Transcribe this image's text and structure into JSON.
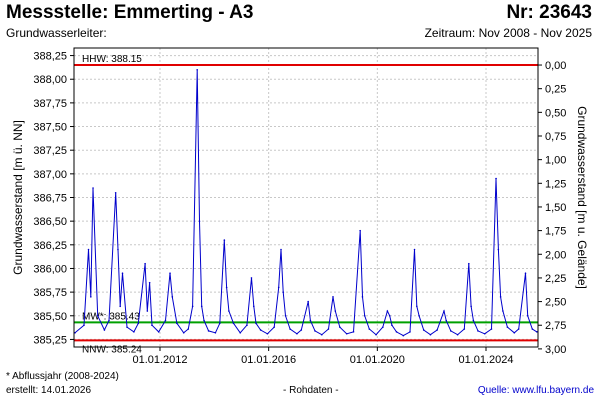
{
  "header": {
    "title": "Messstelle: Emmerting - A3",
    "station_number": "Nr: 23643",
    "subtitle": "Grundwasserleiter:",
    "period": "Zeitraum: Nov 2008 - Nov 2025"
  },
  "footer": {
    "footnote": "* Abflussjahr (2008-2024)",
    "created": "erstellt:  14.01.2026",
    "data_type": "- Rohdaten -",
    "source": "Quelle: www.lfu.bayern.de"
  },
  "colors": {
    "series": "#0000cc",
    "hhw_line": "#e00000",
    "nnw_line": "#e00000",
    "mw_line": "#00a000",
    "grid": "#c8c8c8"
  },
  "chart_data": {
    "type": "line",
    "ylabel": "Grundwasserstand [m ü. NN]",
    "ylabel_right": "Grundwasserstand [m u. Gelände]",
    "xlim": [
      "2008-11-01",
      "2025-11-30"
    ],
    "ylim": [
      385.17,
      388.33
    ],
    "y_ticks": [
      "385,25",
      "385,50",
      "385,75",
      "386,00",
      "386,25",
      "386,50",
      "386,75",
      "387,00",
      "387,25",
      "387,50",
      "387,75",
      "388,00",
      "388,25"
    ],
    "y_tick_values": [
      385.25,
      385.5,
      385.75,
      386.0,
      386.25,
      386.5,
      386.75,
      387.0,
      387.25,
      387.5,
      387.75,
      388.0,
      388.25
    ],
    "y2_ticks": [
      "0,00",
      "0,25",
      "0,50",
      "0,75",
      "1,00",
      "1,25",
      "1,50",
      "1,75",
      "2,00",
      "2,25",
      "2,50",
      "2,75",
      "3,00"
    ],
    "y2_tick_values": [
      0,
      0.25,
      0.5,
      0.75,
      1.0,
      1.25,
      1.5,
      1.75,
      2.0,
      2.25,
      2.5,
      2.75,
      3.0
    ],
    "ground_level": 388.15,
    "x_ticks": [
      "01.01.2012",
      "01.01.2016",
      "01.01.2020",
      "01.01.2024"
    ],
    "x_tick_dates": [
      "2012-01-01",
      "2016-01-01",
      "2020-01-01",
      "2024-01-01"
    ],
    "grid": true,
    "reference_lines": [
      {
        "label": "HHW: 388.15",
        "value": 388.15
      },
      {
        "label": "MW*: 385.43",
        "value": 385.43
      },
      {
        "label": "NNW: 385.24",
        "value": 385.24
      }
    ],
    "series": [
      {
        "x": [
          "2008-11",
          "2009-03",
          "2009-05",
          "2009-06",
          "2009-07",
          "2009-09",
          "2009-12",
          "2010-02",
          "2010-05",
          "2010-06",
          "2010-07",
          "2010-08",
          "2010-10",
          "2011-01",
          "2011-03",
          "2011-06",
          "2011-07",
          "2011-08",
          "2011-09",
          "2011-12",
          "2012-03",
          "2012-05",
          "2012-06",
          "2012-08",
          "2012-11",
          "2013-01",
          "2013-03",
          "2013-05",
          "2013-06",
          "2013-07",
          "2013-08",
          "2013-10",
          "2014-01",
          "2014-03",
          "2014-05",
          "2014-06",
          "2014-07",
          "2014-09",
          "2014-12",
          "2015-03",
          "2015-05",
          "2015-06",
          "2015-07",
          "2015-09",
          "2015-12",
          "2016-03",
          "2016-05",
          "2016-06",
          "2016-07",
          "2016-08",
          "2016-10",
          "2017-01",
          "2017-03",
          "2017-06",
          "2017-07",
          "2017-09",
          "2017-12",
          "2018-03",
          "2018-05",
          "2018-06",
          "2018-08",
          "2018-11",
          "2019-02",
          "2019-05",
          "2019-06",
          "2019-07",
          "2019-09",
          "2019-12",
          "2020-03",
          "2020-05",
          "2020-06",
          "2020-07",
          "2020-09",
          "2020-12",
          "2021-03",
          "2021-05",
          "2021-06",
          "2021-07",
          "2021-09",
          "2021-12",
          "2022-03",
          "2022-06",
          "2022-07",
          "2022-09",
          "2022-12",
          "2023-03",
          "2023-05",
          "2023-06",
          "2023-07",
          "2023-09",
          "2023-12",
          "2024-03",
          "2024-05",
          "2024-06",
          "2024-07",
          "2024-08",
          "2024-10",
          "2025-01",
          "2025-03",
          "2025-06",
          "2025-07",
          "2025-09",
          "2025-11"
        ],
        "values": [
          385.32,
          385.4,
          386.2,
          385.7,
          386.85,
          385.5,
          385.35,
          385.45,
          386.8,
          386.2,
          385.6,
          385.95,
          385.38,
          385.33,
          385.42,
          386.05,
          385.55,
          385.85,
          385.4,
          385.33,
          385.45,
          385.95,
          385.7,
          385.42,
          385.32,
          385.36,
          385.6,
          388.1,
          386.5,
          385.6,
          385.45,
          385.34,
          385.32,
          385.42,
          386.3,
          385.8,
          385.55,
          385.42,
          385.32,
          385.4,
          385.9,
          385.6,
          385.42,
          385.35,
          385.31,
          385.38,
          385.8,
          386.2,
          385.75,
          385.5,
          385.36,
          385.31,
          385.35,
          385.65,
          385.45,
          385.34,
          385.3,
          385.36,
          385.7,
          385.55,
          385.38,
          385.31,
          385.33,
          386.4,
          385.7,
          385.5,
          385.36,
          385.3,
          385.38,
          385.55,
          385.5,
          385.4,
          385.33,
          385.29,
          385.33,
          386.2,
          385.6,
          385.5,
          385.35,
          385.3,
          385.35,
          385.55,
          385.45,
          385.34,
          385.3,
          385.36,
          386.05,
          385.6,
          385.45,
          385.34,
          385.31,
          385.36,
          386.95,
          386.2,
          385.7,
          385.55,
          385.38,
          385.32,
          385.36,
          385.95,
          385.5,
          385.36,
          385.33
        ]
      }
    ]
  }
}
